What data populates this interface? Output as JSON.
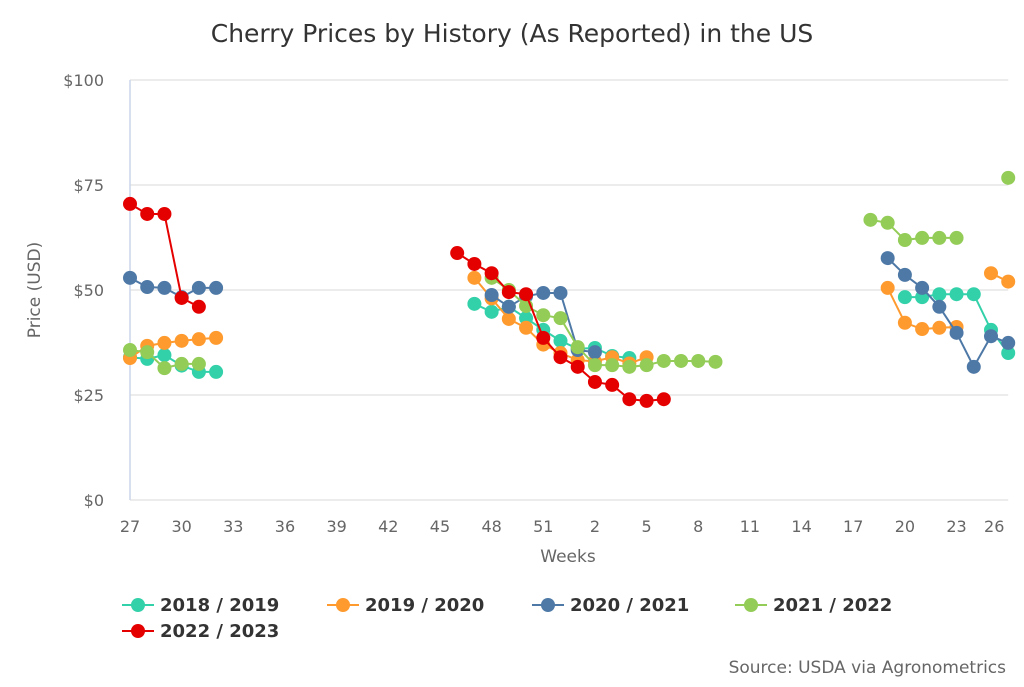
{
  "chart_data": {
    "type": "line",
    "title": "Cherry Prices by History (As Reported) in the US",
    "xlabel": "Weeks",
    "ylabel": "Price (USD)",
    "ylim": [
      0,
      100
    ],
    "yticks": [
      0,
      25,
      50,
      75,
      100
    ],
    "ytick_labels": [
      "$0",
      "$25",
      "$50",
      "$75",
      "$100"
    ],
    "grid": true,
    "legend_position": "bottom-left",
    "categories": [
      "27",
      "28",
      "29",
      "30",
      "31",
      "32",
      "33",
      "34",
      "35",
      "36",
      "37",
      "38",
      "39",
      "40",
      "41",
      "42",
      "43",
      "44",
      "45",
      "46",
      "47",
      "48",
      "49",
      "50",
      "51",
      "52",
      "1",
      "2",
      "3",
      "4",
      "5",
      "6",
      "7",
      "8",
      "9",
      "10",
      "11",
      "12",
      "13",
      "14",
      "15",
      "16",
      "17",
      "18",
      "19",
      "20",
      "21",
      "22",
      "23",
      "24",
      "25",
      "26"
    ],
    "xtick_labels": [
      "27",
      "30",
      "33",
      "36",
      "39",
      "42",
      "45",
      "48",
      "51",
      "2",
      "5",
      "8",
      "11",
      "14",
      "17",
      "20",
      "23",
      "26"
    ],
    "series": [
      {
        "name": "2018 / 2019",
        "color": "#33d1a9",
        "points": {
          "27": 34,
          "28": 33.6,
          "29": 34.5,
          "30": 32,
          "31": 30.5,
          "32": 30.5,
          "47": 46.7,
          "48": 44.8,
          "49": 46,
          "50": 43.3,
          "51": 40.5,
          "52": 37.9,
          "1": 36,
          "2": 36.2,
          "3": 34.3,
          "4": 33.8,
          "20": 48.3,
          "21": 48.3,
          "22": 49,
          "23": 49,
          "24": 49,
          "25": 40.5,
          "26": 35
        }
      },
      {
        "name": "2019 / 2020",
        "color": "#ff9a2e",
        "points": {
          "27": 33.8,
          "28": 36.7,
          "29": 37.4,
          "30": 37.9,
          "31": 38.3,
          "32": 38.6,
          "47": 52.9,
          "48": 48,
          "49": 43.1,
          "50": 41,
          "51": 37,
          "52": 35,
          "1": 33.3,
          "2": 33,
          "3": 34,
          "4": 32.5,
          "5": 34,
          "19": 50.5,
          "20": 42.2,
          "21": 40.7,
          "22": 41,
          "23": 41.2,
          "25": 54,
          "26": 52
        }
      },
      {
        "name": "2020 / 2021",
        "color": "#4e79a7",
        "points": {
          "27": 52.9,
          "28": 50.7,
          "29": 50.5,
          "30": 48.3,
          "31": 50.5,
          "32": 50.5,
          "48": 48.8,
          "49": 46,
          "50": 48.5,
          "51": 49.3,
          "52": 49.3,
          "1": 35.7,
          "2": 35.2,
          "19": 57.6,
          "20": 53.6,
          "21": 50.5,
          "22": 46,
          "23": 39.8,
          "24": 31.7,
          "25": 39,
          "26": 37.4
        }
      },
      {
        "name": "2021 / 2022",
        "color": "#93cc56",
        "points": {
          "27": 35.7,
          "28": 35.2,
          "29": 31.4,
          "30": 32.4,
          "31": 32.4,
          "48": 52.9,
          "49": 50,
          "50": 46.2,
          "51": 44,
          "52": 43.3,
          "1": 36.4,
          "2": 32.1,
          "3": 32.1,
          "4": 31.7,
          "5": 32.1,
          "6": 33.1,
          "7": 33.1,
          "8": 33.1,
          "9": 32.9,
          "18": 66.7,
          "19": 66,
          "20": 61.9,
          "21": 62.4,
          "22": 62.4,
          "23": 62.4,
          "26": 76.7
        }
      },
      {
        "name": "2022 / 2023",
        "color": "#e50000",
        "points": {
          "27": 70.5,
          "28": 68.1,
          "29": 68.1,
          "30": 48.1,
          "31": 46,
          "46": 58.8,
          "47": 56.2,
          "48": 54,
          "49": 49.5,
          "50": 49,
          "51": 38.6,
          "52": 34,
          "1": 31.7,
          "2": 28.1,
          "3": 27.4,
          "4": 24,
          "5": 23.6,
          "6": 24
        }
      }
    ],
    "source": "Source: USDA via Agronometrics"
  }
}
